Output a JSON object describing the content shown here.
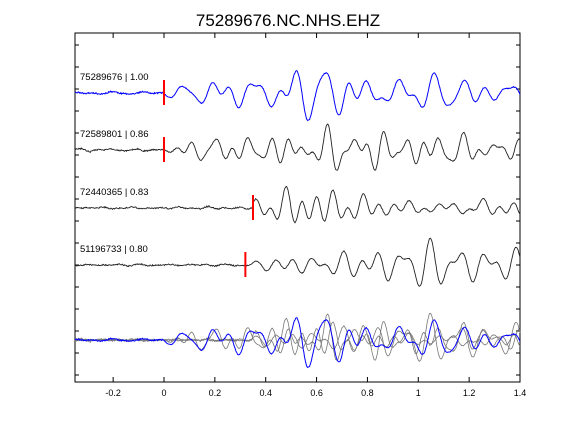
{
  "chart_data": {
    "type": "line",
    "title": "75289676.NC.NHS.EHZ",
    "xlabel": "",
    "ylabel": "",
    "xlim": [
      -0.35,
      1.4
    ],
    "xticks": [
      -0.2,
      0,
      0.2,
      0.4,
      0.6,
      0.8,
      1,
      1.2,
      1.4
    ],
    "xtick_labels": [
      "-0.2",
      "0",
      "0.2",
      "0.4",
      "0.6",
      "0.8",
      "1",
      "1.2",
      "1.4"
    ],
    "grid": false,
    "legend": "none",
    "colors": {
      "primary_trace": "#0000ff",
      "secondary_trace": "#222222",
      "overlay_gray": "#777777",
      "pick_marker": "#ff0000",
      "axes": "#000000"
    },
    "traces": [
      {
        "label": "75289676 | 1.00",
        "event_id": "75289676",
        "correlation": "1.00",
        "pick_time": 0.0,
        "seed": 11,
        "primary": true
      },
      {
        "label": "72589801 | 0.86",
        "event_id": "72589801",
        "correlation": "0.86",
        "pick_time": 0.0,
        "seed": 23,
        "primary": false
      },
      {
        "label": "72440365 | 0.83",
        "event_id": "72440365",
        "correlation": "0.83",
        "pick_time": 0.35,
        "seed": 37,
        "primary": false
      },
      {
        "label": "51196733 | 0.80",
        "event_id": "51196733",
        "correlation": "0.80",
        "pick_time": 0.32,
        "seed": 53,
        "primary": false
      }
    ],
    "overlay": {
      "description_hidden": true,
      "uses_all_traces": true
    }
  }
}
